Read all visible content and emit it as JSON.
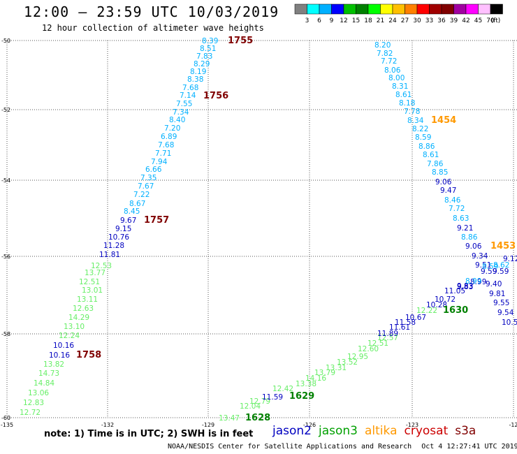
{
  "header": {
    "title": "12:00 – 23:59 UTC 10/03/2019",
    "subtitle": "12 hour collection of altimeter wave heights"
  },
  "colorbar": {
    "colors": [
      "#808080",
      "#00ffff",
      "#00b0ff",
      "#0000ff",
      "#00c000",
      "#008000",
      "#00ff00",
      "#ffff00",
      "#ffc000",
      "#ff8000",
      "#ff0000",
      "#a00000",
      "#800000",
      "#a000a0",
      "#ff00ff",
      "#ffc0ff",
      "#000000"
    ],
    "labels": [
      "3",
      "6",
      "9",
      "12",
      "15",
      "18",
      "21",
      "24",
      "27",
      "30",
      "33",
      "36",
      "39",
      "42",
      "45",
      "70",
      "(ft)"
    ]
  },
  "axes": {
    "lat_ticks": [
      "-50",
      "-52",
      "-54",
      "-56",
      "-58",
      "-60"
    ],
    "lon_ticks": [
      "-135",
      "-132",
      "-129",
      "-126",
      "-123",
      "-12"
    ]
  },
  "time_labels": [
    {
      "text": "1755",
      "color": "#800000"
    },
    {
      "text": "1756",
      "color": "#800000"
    },
    {
      "text": "1757",
      "color": "#800000"
    },
    {
      "text": "1758",
      "color": "#800000"
    },
    {
      "text": "1454",
      "color": "#ff9900"
    },
    {
      "text": "1453",
      "color": "#ff9900"
    },
    {
      "text": "1630",
      "color": "#008000"
    },
    {
      "text": "1629",
      "color": "#008000"
    },
    {
      "text": "1628",
      "color": "#008000"
    }
  ],
  "tracks": {
    "cryosat_track": [
      "8.39",
      "8.51",
      "7.83",
      "8.29",
      "8.19",
      "8.38",
      "7.68",
      "7.14",
      "7.55",
      "7.34",
      "8.40",
      "7.20",
      "6.89",
      "7.68",
      "7.71",
      "7.94",
      "6.66",
      "7.35",
      "7.67",
      "7.22",
      "8.67",
      "8.45",
      "9.67",
      "9.15",
      "10.76",
      "11.28",
      "11.81",
      "12.53",
      "13.77",
      "12.51",
      "13.01",
      "13.11",
      "12.63",
      "14.29",
      "13.10",
      "12.24",
      "10.16",
      "10.16",
      "13.82",
      "14.73",
      "14.84",
      "13.06",
      "12.83",
      "12.72"
    ],
    "altika_track": [
      "8.20",
      "7.82",
      "7.72",
      "8.06",
      "8.00",
      "8.31",
      "8.61",
      "8.18",
      "7.78",
      "8.34",
      "8.22",
      "8.59",
      "8.86",
      "8.61",
      "7.86",
      "8.85",
      "9.06",
      "9.47",
      "8.46",
      "7.72",
      "8.63",
      "9.21",
      "8.86",
      "9.06",
      "9.34",
      "9.51",
      "9.59",
      "9.40",
      "9.81",
      "9.55",
      "9.54",
      "10.5",
      "9.12",
      "8.62",
      "8.59",
      "8.99",
      "9.83"
    ],
    "jason3_track": [
      "13.47",
      "12.04",
      "12.79",
      "12.42",
      "13.38",
      "14.16",
      "13.79",
      "13.31",
      "13.52",
      "12.95",
      "12.60",
      "12.51",
      "12.57",
      "12.22"
    ],
    "jason2_track": [
      "11.59",
      "11.89",
      "11.61",
      "11.58",
      "10.67",
      "10.28",
      "10.72",
      "11.05",
      "9.83",
      "8.99",
      "9.59"
    ]
  },
  "note": "note:  1) Time is in UTC;  2) SWH is in feet",
  "legend": [
    {
      "text": "jason2",
      "color": "#0000c0"
    },
    {
      "text": "jason3",
      "color": "#00a000"
    },
    {
      "text": "altika",
      "color": "#ff9900"
    },
    {
      "text": "cryosat",
      "color": "#cc0000"
    },
    {
      "text": "s3a",
      "color": "#800000"
    }
  ],
  "footer": {
    "center": "NOAA/NESDIS Center for Satellite Applications and Research",
    "timestamp": "Oct  4 12:27:41 UTC 2019"
  }
}
